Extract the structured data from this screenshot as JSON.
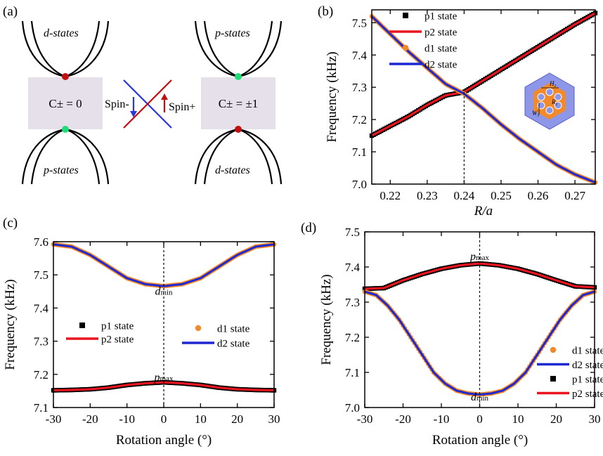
{
  "panel_labels": {
    "a": "(a)",
    "b": "(b)",
    "c": "(c)",
    "d": "(d)"
  },
  "colors": {
    "p1": "#000000",
    "p2": "#e8141e",
    "d1": "#f28a2b",
    "d2": "#1e28d2",
    "box": "#e6e0ea",
    "red_dot": "#c01010",
    "green_dot": "#22dd77",
    "cell_fill": "#f28a2b",
    "cell_bg": "#8e96e8"
  },
  "schematic": {
    "left_top_label": "d-states",
    "left_bottom_label": "p-states",
    "right_top_label": "p-states",
    "right_bottom_label": "d-states",
    "left_box_text": "C± = 0",
    "right_box_text": "C± = ±1",
    "spin_minus": "Spin-",
    "spin_plus": "Spin+"
  },
  "inset_labels": {
    "h": "H",
    "w": "W",
    "r": "R"
  },
  "chart_data": [
    {
      "id": "b",
      "type": "line",
      "xlabel": "R/a",
      "ylabel": "Frequency (kHz)",
      "xlim": [
        0.215,
        0.2755
      ],
      "ylim": [
        7.0,
        7.54
      ],
      "xticks": [
        0.22,
        0.23,
        0.24,
        0.25,
        0.26,
        0.27
      ],
      "xtick_labels": [
        "0.22",
        "0.23",
        "0.24",
        "0.25",
        "0.26",
        "0.27"
      ],
      "yticks": [
        7.0,
        7.1,
        7.2,
        7.3,
        7.4,
        7.5
      ],
      "ytick_labels": [
        "7.0",
        "7.1",
        "7.2",
        "7.3",
        "7.4",
        "7.5"
      ],
      "vline_x": 0.24,
      "legend": [
        "p1 state",
        "p2 state",
        "d1 state",
        "d2 state"
      ],
      "series": [
        {
          "name": "p1 state",
          "x": [
            0.215,
            0.22,
            0.225,
            0.23,
            0.235,
            0.24,
            0.245,
            0.25,
            0.255,
            0.26,
            0.265,
            0.27,
            0.2755
          ],
          "y": [
            7.15,
            7.18,
            7.21,
            7.245,
            7.275,
            7.285,
            7.32,
            7.355,
            7.39,
            7.425,
            7.46,
            7.495,
            7.53
          ]
        },
        {
          "name": "p2 state",
          "x": [
            0.215,
            0.22,
            0.225,
            0.23,
            0.235,
            0.24,
            0.245,
            0.25,
            0.255,
            0.26,
            0.265,
            0.27,
            0.2755
          ],
          "y": [
            7.15,
            7.18,
            7.21,
            7.245,
            7.275,
            7.285,
            7.32,
            7.355,
            7.39,
            7.425,
            7.46,
            7.495,
            7.53
          ]
        },
        {
          "name": "d1 state",
          "x": [
            0.215,
            0.22,
            0.225,
            0.23,
            0.235,
            0.24,
            0.245,
            0.25,
            0.255,
            0.26,
            0.265,
            0.27,
            0.2755
          ],
          "y": [
            7.52,
            7.465,
            7.41,
            7.36,
            7.31,
            7.28,
            7.235,
            7.185,
            7.14,
            7.1,
            7.06,
            7.03,
            7.005
          ]
        },
        {
          "name": "d2 state",
          "x": [
            0.215,
            0.22,
            0.225,
            0.23,
            0.235,
            0.24,
            0.245,
            0.25,
            0.255,
            0.26,
            0.265,
            0.27,
            0.2755
          ],
          "y": [
            7.52,
            7.465,
            7.41,
            7.36,
            7.31,
            7.28,
            7.235,
            7.185,
            7.14,
            7.1,
            7.06,
            7.03,
            7.005
          ]
        }
      ]
    },
    {
      "id": "c",
      "type": "line",
      "xlabel": "Rotation angle (°)",
      "ylabel": "Frequency (kHz)",
      "xlim": [
        -30,
        30
      ],
      "ylim": [
        7.1,
        7.6
      ],
      "xticks": [
        -30,
        -20,
        -10,
        0,
        10,
        20,
        30
      ],
      "xtick_labels": [
        "-30",
        "-20",
        "-10",
        "0",
        "10",
        "20",
        "30"
      ],
      "yticks": [
        7.1,
        7.2,
        7.3,
        7.4,
        7.5,
        7.6
      ],
      "ytick_labels": [
        "7.1",
        "7.2",
        "7.3",
        "7.4",
        "7.5",
        "7.6"
      ],
      "vline_x": 0,
      "annotations": [
        {
          "text": "d",
          "sub": "min",
          "x": 0,
          "y": 7.44
        },
        {
          "text": "p",
          "sub": "max",
          "x": 0,
          "y": 7.18
        }
      ],
      "legend": [
        "p1 state",
        "p2 state",
        "d1 state",
        "d2 state"
      ],
      "series": [
        {
          "name": "p1 state",
          "x": [
            -30,
            -25,
            -20,
            -15,
            -10,
            -5,
            0,
            5,
            10,
            15,
            20,
            25,
            30
          ],
          "y": [
            7.152,
            7.153,
            7.155,
            7.16,
            7.168,
            7.173,
            7.176,
            7.173,
            7.168,
            7.16,
            7.155,
            7.153,
            7.152
          ]
        },
        {
          "name": "p2 state",
          "x": [
            -30,
            -25,
            -20,
            -15,
            -10,
            -5,
            0,
            5,
            10,
            15,
            20,
            25,
            30
          ],
          "y": [
            7.152,
            7.153,
            7.155,
            7.16,
            7.168,
            7.173,
            7.176,
            7.173,
            7.168,
            7.16,
            7.155,
            7.153,
            7.152
          ]
        },
        {
          "name": "d1 state",
          "x": [
            -30,
            -25,
            -20,
            -15,
            -10,
            -5,
            0,
            5,
            10,
            15,
            20,
            25,
            30
          ],
          "y": [
            7.592,
            7.585,
            7.56,
            7.525,
            7.49,
            7.472,
            7.466,
            7.472,
            7.49,
            7.525,
            7.56,
            7.585,
            7.592
          ]
        },
        {
          "name": "d2 state",
          "x": [
            -30,
            -25,
            -20,
            -15,
            -10,
            -5,
            0,
            5,
            10,
            15,
            20,
            25,
            30
          ],
          "y": [
            7.592,
            7.585,
            7.56,
            7.525,
            7.49,
            7.472,
            7.466,
            7.472,
            7.49,
            7.525,
            7.56,
            7.585,
            7.592
          ]
        }
      ]
    },
    {
      "id": "d",
      "type": "line",
      "xlabel": "Rotation angle (°)",
      "ylabel": "Frequency (kHz)",
      "xlim": [
        -30,
        30
      ],
      "ylim": [
        7.0,
        7.5
      ],
      "xticks": [
        -30,
        -20,
        -10,
        0,
        10,
        20,
        30
      ],
      "xtick_labels": [
        "-30",
        "-20",
        "-10",
        "0",
        "10",
        "20",
        "30"
      ],
      "yticks": [
        7.0,
        7.1,
        7.2,
        7.3,
        7.4,
        7.5
      ],
      "ytick_labels": [
        "7.0",
        "7.1",
        "7.2",
        "7.3",
        "7.4",
        "7.5"
      ],
      "vline_x": 0,
      "annotations": [
        {
          "text": "p",
          "sub": "max",
          "x": 0,
          "y": 7.42
        },
        {
          "text": "d",
          "sub": "min",
          "x": 0,
          "y": 7.02
        }
      ],
      "legend": [
        "d1 state",
        "d2 state",
        "p1 state",
        "p2 state"
      ],
      "series": [
        {
          "name": "d1 state",
          "x": [
            -30,
            -27,
            -24,
            -21,
            -18,
            -15,
            -12,
            -9,
            -6,
            -3,
            0,
            3,
            6,
            9,
            12,
            15,
            18,
            21,
            24,
            27,
            30
          ],
          "y": [
            7.33,
            7.32,
            7.29,
            7.25,
            7.2,
            7.15,
            7.1,
            7.068,
            7.048,
            7.04,
            7.037,
            7.04,
            7.048,
            7.068,
            7.1,
            7.15,
            7.2,
            7.25,
            7.29,
            7.32,
            7.33
          ]
        },
        {
          "name": "d2 state",
          "x": [
            -30,
            -27,
            -24,
            -21,
            -18,
            -15,
            -12,
            -9,
            -6,
            -3,
            0,
            3,
            6,
            9,
            12,
            15,
            18,
            21,
            24,
            27,
            30
          ],
          "y": [
            7.33,
            7.32,
            7.29,
            7.25,
            7.2,
            7.15,
            7.1,
            7.068,
            7.048,
            7.04,
            7.037,
            7.04,
            7.048,
            7.068,
            7.1,
            7.15,
            7.2,
            7.25,
            7.29,
            7.32,
            7.33
          ]
        },
        {
          "name": "p1 state",
          "x": [
            -30,
            -25,
            -20,
            -15,
            -10,
            -5,
            0,
            5,
            10,
            15,
            20,
            25,
            30
          ],
          "y": [
            7.338,
            7.34,
            7.362,
            7.38,
            7.395,
            7.405,
            7.41,
            7.405,
            7.395,
            7.38,
            7.362,
            7.345,
            7.342
          ]
        },
        {
          "name": "p2 state",
          "x": [
            -30,
            -25,
            -20,
            -15,
            -10,
            -5,
            0,
            5,
            10,
            15,
            20,
            25,
            30
          ],
          "y": [
            7.338,
            7.34,
            7.362,
            7.38,
            7.395,
            7.405,
            7.41,
            7.405,
            7.395,
            7.38,
            7.362,
            7.345,
            7.342
          ]
        }
      ]
    }
  ]
}
